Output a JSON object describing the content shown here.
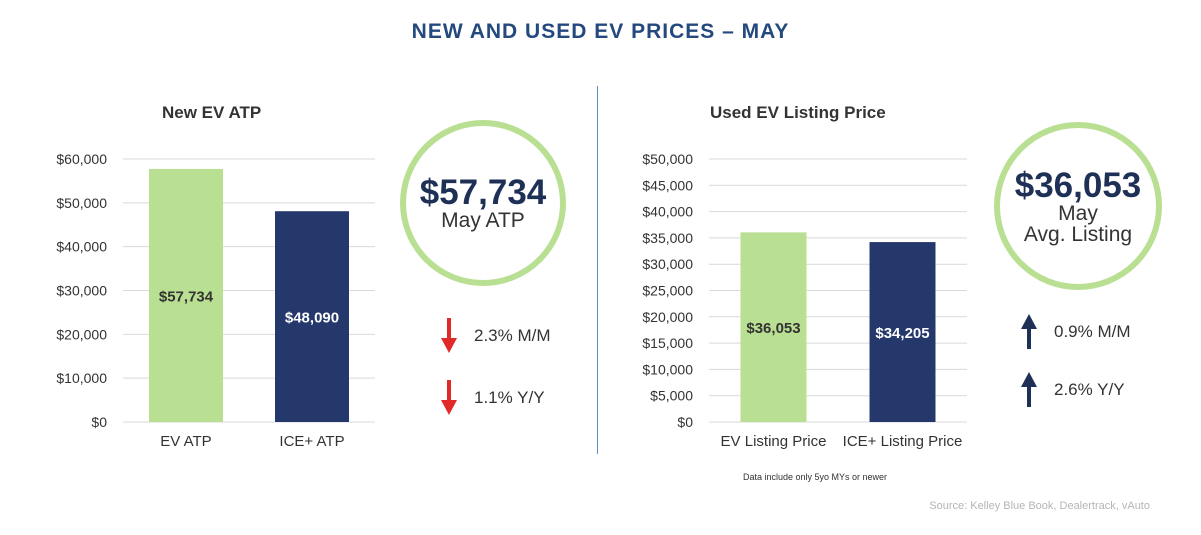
{
  "title": "NEW AND USED EV PRICES – MAY",
  "colors": {
    "green": "#b9df92",
    "navy": "#24386c",
    "up_arrow": "#1f3057",
    "down_arrow": "#e02a2a",
    "title": "#24497e"
  },
  "chart_data": [
    {
      "type": "bar",
      "title": "New EV ATP",
      "categories": [
        "EV ATP",
        "ICE+ ATP"
      ],
      "values": [
        57734,
        48090
      ],
      "data_labels": [
        "$57,734",
        "$48,090"
      ],
      "yticks": [
        "$0",
        "$10,000",
        "$20,000",
        "$30,000",
        "$40,000",
        "$50,000",
        "$60,000"
      ],
      "ylim": [
        0,
        60000
      ],
      "ystep": 10000,
      "grid": true,
      "legend": "none"
    },
    {
      "type": "bar",
      "title": "Used EV Listing Price",
      "categories": [
        "EV Listing Price",
        "ICE+ Listing Price"
      ],
      "values": [
        36053,
        34205
      ],
      "data_labels": [
        "$36,053",
        "$34,205"
      ],
      "yticks": [
        "$0",
        "$5,000",
        "$10,000",
        "$15,000",
        "$20,000",
        "$25,000",
        "$30,000",
        "$35,000",
        "$40,000",
        "$45,000",
        "$50,000"
      ],
      "ylim": [
        0,
        50000
      ],
      "ystep": 5000,
      "grid": true,
      "legend": "none"
    }
  ],
  "kpi_new": {
    "value": "$57,734",
    "label_lines": [
      "May ATP"
    ],
    "changes": [
      {
        "direction": "down",
        "text": "2.3% M/M"
      },
      {
        "direction": "down",
        "text": "1.1% Y/Y"
      }
    ]
  },
  "kpi_used": {
    "value": "$36,053",
    "label_lines": [
      "May",
      "Avg. Listing"
    ],
    "changes": [
      {
        "direction": "up",
        "text": "0.9% M/M"
      },
      {
        "direction": "up",
        "text": "2.6% Y/Y"
      }
    ]
  },
  "footnote": "Data include only 5yo MYs or newer",
  "source": "Source: Kelley Blue Book, Dealertrack, vAuto"
}
